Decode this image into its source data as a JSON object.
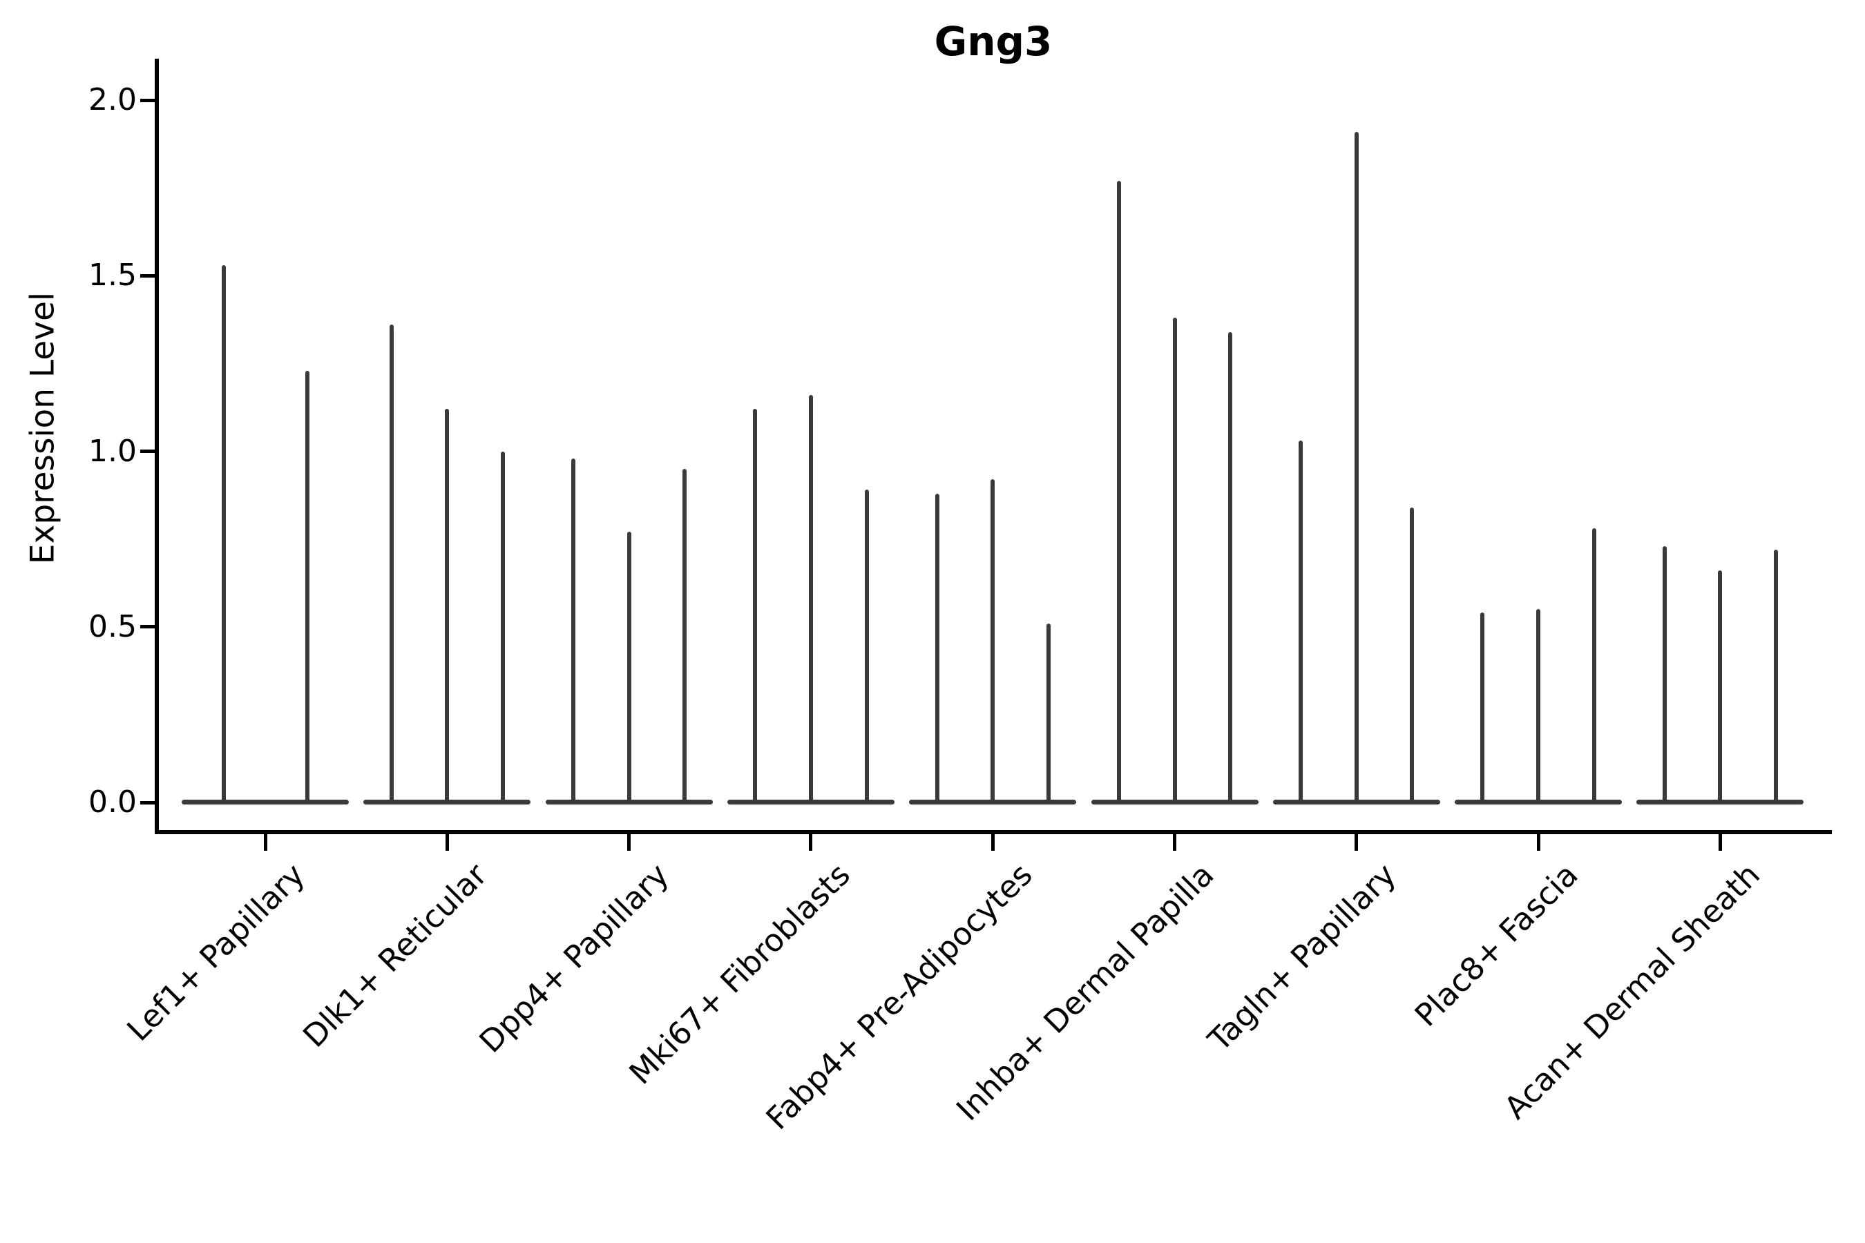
{
  "title": "Gng3",
  "y_axis": {
    "label": "Expression Level",
    "tick_labels": [
      "0.0",
      "0.5",
      "1.0",
      "1.5",
      "2.0"
    ]
  },
  "x_axis": {
    "categories": [
      "Lef1+ Papillary",
      "Dlk1+ Reticular",
      "Dpp4+ Papillary",
      "Mki67+ Fibroblasts",
      "Fabp4+ Pre-Adipocytes",
      "Inhba+ Dermal Papilla",
      "Tagln+ Papillary",
      "Plac8+ Fascia",
      "Acan+ Dermal Sheath"
    ]
  },
  "chart_data": {
    "type": "violin",
    "title": "Gng3",
    "xlabel": "",
    "ylabel": "Expression Level",
    "ylim": [
      -0.09,
      2.12
    ],
    "yticks": [
      0.0,
      0.5,
      1.0,
      1.5,
      2.0
    ],
    "grid": false,
    "legend": "none",
    "description": "Violin plot of Gng3 expression per fibroblast subtype; each violin is mostly zero-expressing cells (wide flat base at 0) with a thin spike reaching the maximum expression value.",
    "categories": [
      "Lef1+ Papillary",
      "Dlk1+ Reticular",
      "Dpp4+ Papillary",
      "Mki67+ Fibroblasts",
      "Fabp4+ Pre-Adipocytes",
      "Inhba+ Dermal Papilla",
      "Tagln+ Papillary",
      "Plac8+ Fascia",
      "Acan+ Dermal Sheath"
    ],
    "series": [
      {
        "category": "Lef1+ Papillary",
        "violin_max_expression": [
          1.53,
          1.23
        ]
      },
      {
        "category": "Dlk1+ Reticular",
        "violin_max_expression": [
          1.36,
          1.12,
          1.0
        ]
      },
      {
        "category": "Dpp4+ Papillary",
        "violin_max_expression": [
          0.98,
          0.77,
          0.95
        ]
      },
      {
        "category": "Mki67+ Fibroblasts",
        "violin_max_expression": [
          1.12,
          1.16,
          0.89
        ]
      },
      {
        "category": "Fabp4+ Pre-Adipocytes",
        "violin_max_expression": [
          0.88,
          0.92,
          0.51
        ]
      },
      {
        "category": "Inhba+ Dermal Papilla",
        "violin_max_expression": [
          1.77,
          1.38,
          1.34
        ]
      },
      {
        "category": "Tagln+ Papillary",
        "violin_max_expression": [
          1.03,
          1.91,
          0.84
        ]
      },
      {
        "category": "Plac8+ Fascia",
        "violin_max_expression": [
          0.54,
          0.55,
          0.78
        ]
      },
      {
        "category": "Acan+ Dermal Sheath",
        "violin_max_expression": [
          0.73,
          0.66,
          0.72
        ]
      }
    ]
  },
  "colors": {
    "violin": "#3a3a3a",
    "axis": "#000000",
    "text": "#000000",
    "background": "#ffffff"
  }
}
